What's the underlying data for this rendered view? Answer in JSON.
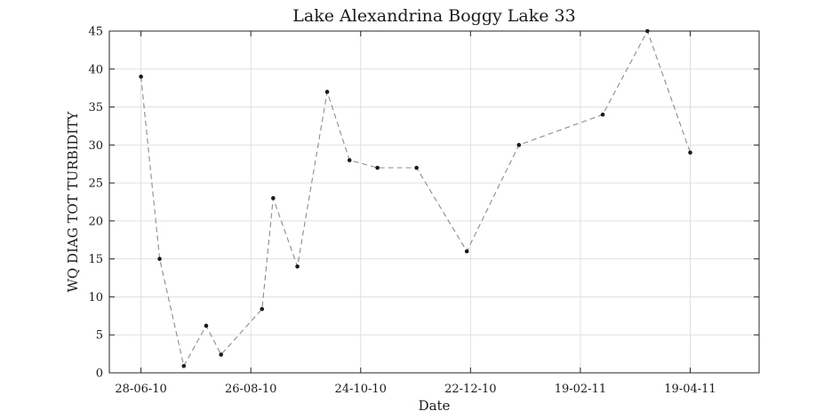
{
  "chart_data": {
    "type": "line",
    "title": "Lake Alexandrina Boggy Lake 33",
    "xlabel": "Date",
    "ylabel": "WQ DIAG TOT TURBIDITY",
    "x_type": "date",
    "x_tick_labels": [
      "28-06-10",
      "26-08-10",
      "24-10-10",
      "22-12-10",
      "19-02-11",
      "19-04-11"
    ],
    "x_tick_dates": [
      "2010-06-28",
      "2010-08-26",
      "2010-10-24",
      "2010-12-22",
      "2011-02-19",
      "2011-04-19"
    ],
    "xlim": [
      "2010-06-11",
      "2011-05-26"
    ],
    "ylim": [
      0,
      45
    ],
    "y_ticks": [
      0,
      5,
      10,
      15,
      20,
      25,
      30,
      35,
      40,
      45
    ],
    "grid": true,
    "series": [
      {
        "line_style": "dashed",
        "line_color": "#8c8c8c",
        "marker_color": "#1a1a1a",
        "points": [
          {
            "x": "2010-06-28",
            "y": 39
          },
          {
            "x": "2010-07-08",
            "y": 15
          },
          {
            "x": "2010-07-21",
            "y": 0.9
          },
          {
            "x": "2010-08-02",
            "y": 6.2
          },
          {
            "x": "2010-08-10",
            "y": 2.4
          },
          {
            "x": "2010-09-01",
            "y": 8.4
          },
          {
            "x": "2010-09-07",
            "y": 23
          },
          {
            "x": "2010-09-20",
            "y": 14
          },
          {
            "x": "2010-10-06",
            "y": 37
          },
          {
            "x": "2010-10-18",
            "y": 28
          },
          {
            "x": "2010-11-02",
            "y": 27
          },
          {
            "x": "2010-11-23",
            "y": 27
          },
          {
            "x": "2010-12-20",
            "y": 16
          },
          {
            "x": "2011-01-17",
            "y": 30
          },
          {
            "x": "2011-02-31",
            "y": 34
          },
          {
            "x": "2011-03-27",
            "y": 45
          },
          {
            "x": "2011-04-19",
            "y": 29
          }
        ]
      }
    ]
  }
}
